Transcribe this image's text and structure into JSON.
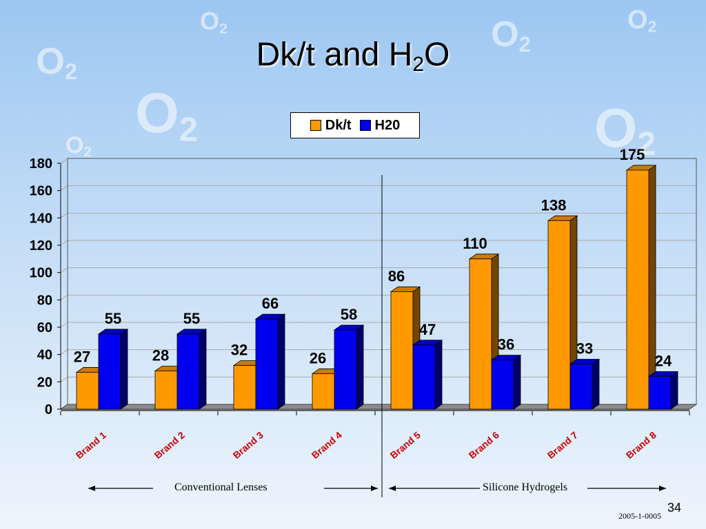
{
  "title": {
    "main": "Dk/t and H",
    "sub": "2",
    "tail": "O"
  },
  "decor": {
    "o2_letter": "O",
    "o2_sub": "2"
  },
  "chart_data": {
    "type": "bar",
    "categories": [
      "Brand 1",
      "Brand 2",
      "Brand 3",
      "Brand 4",
      "Brand 5",
      "Brand 6",
      "Brand 7",
      "Brand 8"
    ],
    "series": [
      {
        "name": "Dk/t",
        "values": [
          27,
          28,
          32,
          26,
          86,
          110,
          138,
          175
        ],
        "color": "#ff9900"
      },
      {
        "name": "H20",
        "values": [
          55,
          55,
          66,
          58,
          47,
          36,
          33,
          24
        ],
        "color": "#0000ee"
      }
    ],
    "ylim": [
      0,
      180
    ],
    "yticks": [
      0,
      20,
      40,
      60,
      80,
      100,
      120,
      140,
      160,
      180
    ],
    "grid": true,
    "legend_position": "top-center",
    "data_labels": true
  },
  "groups": {
    "left": "Conventional  Lenses",
    "right": "Silicone Hydrogels"
  },
  "page_number": "34",
  "reference": "2005-1-0005"
}
